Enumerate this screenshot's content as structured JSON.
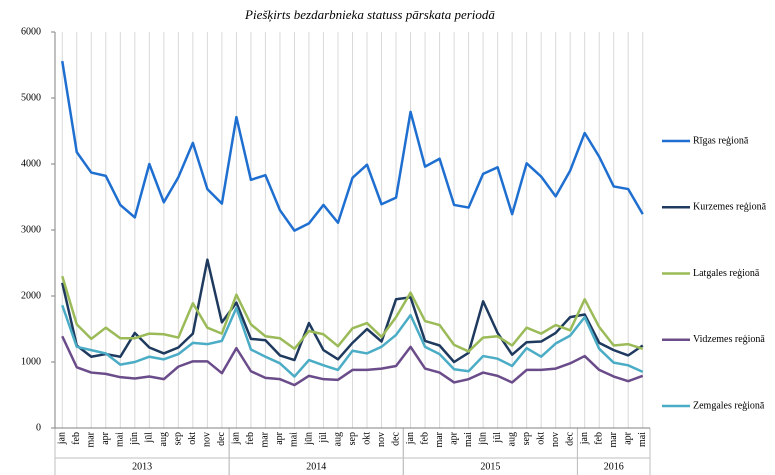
{
  "chart_data": {
    "type": "line",
    "title": "Piešķirts bezdarbnieka statuss pārskata periodā",
    "groups": [
      {
        "label": "2013",
        "categories": [
          "jan",
          "feb",
          "mar",
          "apr",
          "mai",
          "jūn",
          "jūl",
          "aug",
          "sep",
          "okt",
          "nov",
          "dec"
        ]
      },
      {
        "label": "2014",
        "categories": [
          "jan",
          "feb",
          "mar",
          "apr",
          "mai",
          "jūn",
          "jūl",
          "aug",
          "sep",
          "okt",
          "nov",
          "dec"
        ]
      },
      {
        "label": "2015",
        "categories": [
          "jan",
          "feb",
          "mar",
          "apr",
          "mai",
          "jūn",
          "jūl",
          "aug",
          "sep",
          "okt",
          "nov",
          "dec"
        ]
      },
      {
        "label": "2016",
        "categories": [
          "jan",
          "feb",
          "mar",
          "apr",
          "mai"
        ]
      }
    ],
    "ylim": [
      0,
      6000
    ],
    "yticks": [
      0,
      1000,
      2000,
      3000,
      4000,
      5000,
      6000
    ],
    "legend": "right",
    "series": [
      {
        "name": "Rīgas reģionā",
        "color": "#1f6fd0",
        "values": [
          5560,
          4180,
          3870,
          3820,
          3380,
          3190,
          4000,
          3420,
          3800,
          4320,
          3620,
          3400,
          4710,
          3760,
          3830,
          3300,
          2990,
          3100,
          3380,
          3110,
          3790,
          3990,
          3390,
          3490,
          4790,
          3960,
          4080,
          3380,
          3340,
          3850,
          3950,
          3240,
          4010,
          3810,
          3510,
          3900,
          4470,
          4110,
          3660,
          3620,
          3240
        ]
      },
      {
        "name": "Kurzemes reģionā",
        "color": "#1f3a5f",
        "values": [
          2200,
          1250,
          1080,
          1120,
          1080,
          1440,
          1220,
          1130,
          1220,
          1430,
          2550,
          1600,
          1900,
          1350,
          1330,
          1100,
          1030,
          1590,
          1180,
          1040,
          1290,
          1500,
          1310,
          1950,
          1980,
          1320,
          1250,
          1000,
          1140,
          1920,
          1440,
          1110,
          1300,
          1310,
          1440,
          1680,
          1720,
          1290,
          1180,
          1100,
          1250
        ]
      },
      {
        "name": "Latgales reģionā",
        "color": "#9bbb59",
        "values": [
          2300,
          1570,
          1350,
          1520,
          1360,
          1360,
          1430,
          1420,
          1370,
          1890,
          1520,
          1430,
          2020,
          1570,
          1390,
          1360,
          1200,
          1470,
          1420,
          1240,
          1510,
          1590,
          1380,
          1680,
          2050,
          1620,
          1560,
          1260,
          1160,
          1370,
          1390,
          1250,
          1520,
          1430,
          1560,
          1480,
          1950,
          1530,
          1250,
          1270,
          1200
        ]
      },
      {
        "name": "Vidzemes reģionā",
        "color": "#6b4c8a",
        "values": [
          1390,
          920,
          840,
          820,
          770,
          750,
          780,
          740,
          930,
          1010,
          1010,
          830,
          1210,
          860,
          760,
          740,
          650,
          790,
          740,
          730,
          880,
          880,
          900,
          940,
          1230,
          900,
          840,
          690,
          740,
          840,
          790,
          690,
          880,
          880,
          900,
          980,
          1090,
          880,
          780,
          710,
          790
        ]
      },
      {
        "name": "Zemgales reģionā",
        "color": "#4bacc6",
        "values": [
          1860,
          1230,
          1180,
          1130,
          960,
          1000,
          1080,
          1040,
          1120,
          1290,
          1270,
          1320,
          1820,
          1190,
          1080,
          980,
          780,
          1030,
          950,
          880,
          1170,
          1130,
          1230,
          1410,
          1710,
          1230,
          1120,
          890,
          860,
          1090,
          1050,
          940,
          1210,
          1080,
          1280,
          1400,
          1680,
          1200,
          990,
          950,
          850
        ]
      }
    ]
  }
}
